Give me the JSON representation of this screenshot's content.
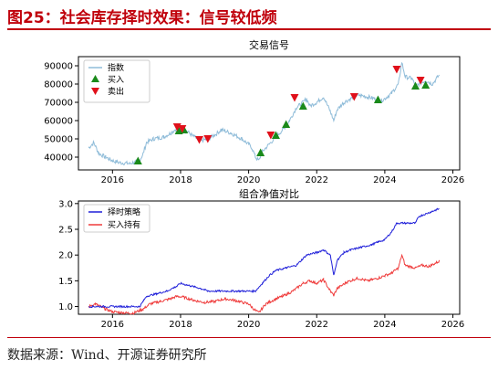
{
  "figure_title": "图25：社会库存择时效果：信号较低频",
  "source": "数据来源：Wind、开源证券研究所",
  "colors": {
    "title_red": "#c0000b",
    "index_line": "#8fbcd9",
    "buy_marker": "#1a8a1a",
    "sell_marker": "#e0101a",
    "strategy_line": "#1f1fd9",
    "hold_line": "#ef3b3b"
  },
  "chart_data": [
    {
      "type": "line",
      "title": "交易信号",
      "xlim": [
        2015.0,
        2026.2
      ],
      "ylim": [
        33000,
        95000
      ],
      "x_ticks": [
        2016,
        2018,
        2020,
        2022,
        2024,
        2026
      ],
      "y_ticks": [
        40000,
        50000,
        60000,
        70000,
        80000,
        90000
      ],
      "legend": [
        "指数",
        "买入",
        "卖出"
      ],
      "legend_position": "upper left",
      "series": [
        {
          "name": "指数",
          "anchors": [
            [
              2015.3,
              45000
            ],
            [
              2015.45,
              48000
            ],
            [
              2015.6,
              42000
            ],
            [
              2015.8,
              40000
            ],
            [
              2016.0,
              38000
            ],
            [
              2016.2,
              37000
            ],
            [
              2016.5,
              36500
            ],
            [
              2016.8,
              38000
            ],
            [
              2016.9,
              42000
            ],
            [
              2017.0,
              48000
            ],
            [
              2017.2,
              50000
            ],
            [
              2017.5,
              51000
            ],
            [
              2017.7,
              53000
            ],
            [
              2017.9,
              56000
            ],
            [
              2018.0,
              55000
            ],
            [
              2018.2,
              54000
            ],
            [
              2018.4,
              51000
            ],
            [
              2018.6,
              49000
            ],
            [
              2018.8,
              50000
            ],
            [
              2019.0,
              52000
            ],
            [
              2019.2,
              55000
            ],
            [
              2019.5,
              53000
            ],
            [
              2019.8,
              50000
            ],
            [
              2020.0,
              47000
            ],
            [
              2020.1,
              45000
            ],
            [
              2020.2,
              40000
            ],
            [
              2020.3,
              38000
            ],
            [
              2020.4,
              43000
            ],
            [
              2020.6,
              47000
            ],
            [
              2020.8,
              51000
            ],
            [
              2021.0,
              55000
            ],
            [
              2021.2,
              60000
            ],
            [
              2021.4,
              67000
            ],
            [
              2021.6,
              70000
            ],
            [
              2021.7,
              72000
            ],
            [
              2021.8,
              68000
            ],
            [
              2022.0,
              70000
            ],
            [
              2022.2,
              73000
            ],
            [
              2022.4,
              65000
            ],
            [
              2022.5,
              60000
            ],
            [
              2022.6,
              66000
            ],
            [
              2022.8,
              70000
            ],
            [
              2023.0,
              72000
            ],
            [
              2023.2,
              74000
            ],
            [
              2023.5,
              73000
            ],
            [
              2023.7,
              72000
            ],
            [
              2023.9,
              71000
            ],
            [
              2024.0,
              72000
            ],
            [
              2024.2,
              75000
            ],
            [
              2024.4,
              80000
            ],
            [
              2024.5,
              92000
            ],
            [
              2024.6,
              84000
            ],
            [
              2024.8,
              83000
            ],
            [
              2024.9,
              79000
            ],
            [
              2025.0,
              80000
            ],
            [
              2025.2,
              82000
            ],
            [
              2025.4,
              80000
            ],
            [
              2025.6,
              85000
            ]
          ]
        }
      ],
      "buy_signals": [
        [
          2016.75,
          38000
        ],
        [
          2017.95,
          54500
        ],
        [
          2018.1,
          55000
        ],
        [
          2020.35,
          42500
        ],
        [
          2020.8,
          52000
        ],
        [
          2021.1,
          58000
        ],
        [
          2021.6,
          68000
        ],
        [
          2023.8,
          71500
        ],
        [
          2024.9,
          79000
        ],
        [
          2025.2,
          79500
        ]
      ],
      "sell_signals": [
        [
          2017.9,
          56500
        ],
        [
          2018.05,
          55500
        ],
        [
          2018.55,
          49500
        ],
        [
          2018.8,
          50000
        ],
        [
          2020.65,
          52000
        ],
        [
          2021.35,
          72500
        ],
        [
          2023.1,
          73000
        ],
        [
          2024.35,
          88000
        ],
        [
          2025.05,
          82000
        ]
      ]
    },
    {
      "type": "line",
      "title": "组合净值对比",
      "xlim": [
        2015.0,
        2026.2
      ],
      "ylim": [
        0.85,
        3.05
      ],
      "x_ticks": [
        2016,
        2018,
        2020,
        2022,
        2024,
        2026
      ],
      "y_ticks": [
        1.0,
        1.5,
        2.0,
        2.5,
        3.0
      ],
      "legend": [
        "择时策略",
        "买入持有"
      ],
      "legend_position": "upper left",
      "series": [
        {
          "name": "择时策略",
          "anchors": [
            [
              2015.3,
              1.0
            ],
            [
              2016.8,
              1.0
            ],
            [
              2016.9,
              1.1
            ],
            [
              2017.0,
              1.2
            ],
            [
              2017.3,
              1.25
            ],
            [
              2017.6,
              1.3
            ],
            [
              2017.9,
              1.4
            ],
            [
              2018.0,
              1.45
            ],
            [
              2018.3,
              1.4
            ],
            [
              2018.6,
              1.35
            ],
            [
              2018.8,
              1.3
            ],
            [
              2019.5,
              1.3
            ],
            [
              2020.2,
              1.3
            ],
            [
              2020.4,
              1.45
            ],
            [
              2020.6,
              1.6
            ],
            [
              2020.8,
              1.7
            ],
            [
              2021.1,
              1.75
            ],
            [
              2021.4,
              1.8
            ],
            [
              2021.7,
              2.0
            ],
            [
              2022.0,
              2.05
            ],
            [
              2022.2,
              2.1
            ],
            [
              2022.4,
              2.0
            ],
            [
              2022.5,
              1.6
            ],
            [
              2022.6,
              1.9
            ],
            [
              2022.8,
              2.05
            ],
            [
              2023.0,
              2.1
            ],
            [
              2023.3,
              2.15
            ],
            [
              2023.6,
              2.2
            ],
            [
              2023.8,
              2.25
            ],
            [
              2024.0,
              2.3
            ],
            [
              2024.2,
              2.45
            ],
            [
              2024.35,
              2.62
            ],
            [
              2024.5,
              2.62
            ],
            [
              2024.9,
              2.62
            ],
            [
              2025.0,
              2.75
            ],
            [
              2025.2,
              2.8
            ],
            [
              2025.4,
              2.85
            ],
            [
              2025.6,
              2.9
            ]
          ]
        },
        {
          "name": "买入持有",
          "anchors": [
            [
              2015.3,
              1.0
            ],
            [
              2015.5,
              1.05
            ],
            [
              2015.8,
              0.95
            ],
            [
              2016.0,
              0.9
            ],
            [
              2016.3,
              0.88
            ],
            [
              2016.6,
              0.87
            ],
            [
              2016.9,
              0.95
            ],
            [
              2017.1,
              1.05
            ],
            [
              2017.4,
              1.1
            ],
            [
              2017.7,
              1.15
            ],
            [
              2017.9,
              1.2
            ],
            [
              2018.1,
              1.18
            ],
            [
              2018.4,
              1.12
            ],
            [
              2018.7,
              1.08
            ],
            [
              2019.0,
              1.1
            ],
            [
              2019.3,
              1.15
            ],
            [
              2019.6,
              1.12
            ],
            [
              2020.0,
              1.05
            ],
            [
              2020.2,
              0.92
            ],
            [
              2020.3,
              0.88
            ],
            [
              2020.5,
              1.05
            ],
            [
              2020.8,
              1.15
            ],
            [
              2021.0,
              1.2
            ],
            [
              2021.3,
              1.3
            ],
            [
              2021.6,
              1.45
            ],
            [
              2021.8,
              1.5
            ],
            [
              2022.0,
              1.45
            ],
            [
              2022.2,
              1.52
            ],
            [
              2022.4,
              1.3
            ],
            [
              2022.5,
              1.22
            ],
            [
              2022.6,
              1.35
            ],
            [
              2022.9,
              1.48
            ],
            [
              2023.2,
              1.55
            ],
            [
              2023.5,
              1.5
            ],
            [
              2023.8,
              1.55
            ],
            [
              2024.0,
              1.6
            ],
            [
              2024.2,
              1.65
            ],
            [
              2024.4,
              1.75
            ],
            [
              2024.5,
              2.0
            ],
            [
              2024.6,
              1.8
            ],
            [
              2024.9,
              1.75
            ],
            [
              2025.1,
              1.8
            ],
            [
              2025.3,
              1.78
            ],
            [
              2025.6,
              1.88
            ]
          ]
        }
      ]
    }
  ]
}
